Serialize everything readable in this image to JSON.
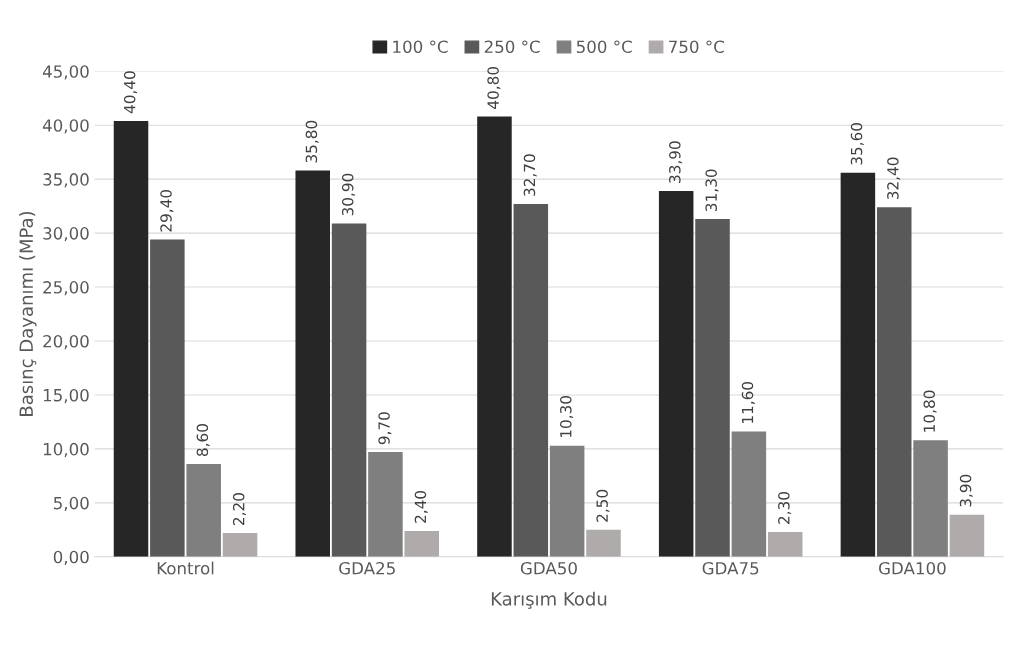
{
  "chart_data": {
    "type": "bar",
    "xlabel": "Karışım Kodu",
    "ylabel": "Basınç Dayanımı (MPa)",
    "categories": [
      "Kontrol",
      "GDA25",
      "GDA50",
      "GDA75",
      "GDA100"
    ],
    "series": [
      {
        "name": "100 °C",
        "color": "#262626",
        "values": [
          40.4,
          35.8,
          40.8,
          33.9,
          35.6
        ],
        "value_labels": [
          "40,40",
          "35,80",
          "40,80",
          "33,90",
          "35,60"
        ]
      },
      {
        "name": "250 °C",
        "color": "#595959",
        "values": [
          29.4,
          30.9,
          32.7,
          31.3,
          32.4
        ],
        "value_labels": [
          "29,40",
          "30,90",
          "32,70",
          "31,30",
          "32,40"
        ]
      },
      {
        "name": "500 °C",
        "color": "#7f7f7f",
        "values": [
          8.6,
          9.7,
          10.3,
          11.6,
          10.8
        ],
        "value_labels": [
          "8,60",
          "9,70",
          "10,30",
          "11,60",
          "10,80"
        ]
      },
      {
        "name": "750 °C",
        "color": "#afabab",
        "values": [
          2.2,
          2.4,
          2.5,
          2.3,
          3.9
        ],
        "value_labels": [
          "2,20",
          "2,40",
          "2,50",
          "2,30",
          "3,90"
        ]
      }
    ],
    "ylim": [
      0,
      45
    ],
    "yticks": [
      {
        "value": 0,
        "label": "0,00"
      },
      {
        "value": 5,
        "label": "5,00"
      },
      {
        "value": 10,
        "label": "10,00"
      },
      {
        "value": 15,
        "label": "15,00"
      },
      {
        "value": 20,
        "label": "20,00"
      },
      {
        "value": 25,
        "label": "25,00"
      },
      {
        "value": 30,
        "label": "30,00"
      },
      {
        "value": 35,
        "label": "35,00"
      },
      {
        "value": 40,
        "label": "40,00"
      },
      {
        "value": 45,
        "label": "45,00"
      }
    ],
    "grid": "y",
    "legend": "top"
  }
}
